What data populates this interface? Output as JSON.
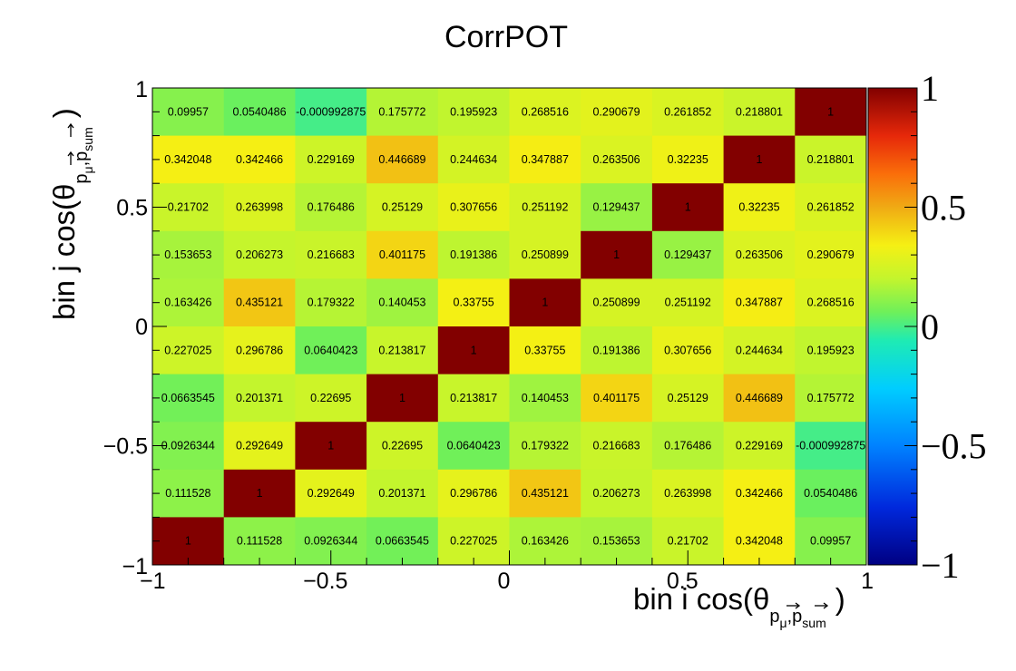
{
  "chart_data": {
    "type": "heatmap",
    "title": "CorrPOT",
    "xlabel": {
      "main": "bin i cos(θ",
      "subscript": "p",
      "sub2": "μ",
      "sep": ",",
      "sub3": "p",
      "sub4": "sum",
      "close": ")"
    },
    "ylabel": {
      "main": "bin j cos(θ",
      "subscript": "p",
      "sub2": "μ",
      "sep": ",",
      "sub3": "p",
      "sub4": "sum",
      "close": ")"
    },
    "xlim": [
      -1,
      1
    ],
    "ylim": [
      -1,
      1
    ],
    "zlim": [
      -1,
      1
    ],
    "x_ticks": [
      "−1",
      "−0.5",
      "0",
      "0.5",
      "1"
    ],
    "y_ticks": [
      "−1",
      "−0.5",
      "0",
      "0.5",
      "1"
    ],
    "colorbar_ticks": [
      "−1",
      "−0.5",
      "0",
      "0.5",
      "1"
    ],
    "colorbar_tick_values": [
      -1,
      -0.5,
      0,
      0.5,
      1
    ],
    "tick_values": [
      -1,
      -0.5,
      0,
      0.5,
      1
    ],
    "n_bins": 10,
    "rows_top_to_bottom": [
      [
        "0.09957",
        "0.0540486",
        "-0.000992875",
        "0.175772",
        "0.195923",
        "0.268516",
        "0.290679",
        "0.261852",
        "0.218801",
        "1"
      ],
      [
        "0.342048",
        "0.342466",
        "0.229169",
        "0.446689",
        "0.244634",
        "0.347887",
        "0.263506",
        "0.32235",
        "1",
        "0.218801"
      ],
      [
        "0.21702",
        "0.263998",
        "0.176486",
        "0.25129",
        "0.307656",
        "0.251192",
        "0.129437",
        "1",
        "0.32235",
        "0.261852"
      ],
      [
        "0.153653",
        "0.206273",
        "0.216683",
        "0.401175",
        "0.191386",
        "0.250899",
        "1",
        "0.129437",
        "0.263506",
        "0.290679"
      ],
      [
        "0.163426",
        "0.435121",
        "0.179322",
        "0.140453",
        "0.33755",
        "1",
        "0.250899",
        "0.251192",
        "0.347887",
        "0.268516"
      ],
      [
        "0.227025",
        "0.296786",
        "0.0640423",
        "0.213817",
        "1",
        "0.33755",
        "0.191386",
        "0.307656",
        "0.244634",
        "0.195923"
      ],
      [
        "0.0663545",
        "0.201371",
        "0.22695",
        "1",
        "0.213817",
        "0.140453",
        "0.401175",
        "0.25129",
        "0.446689",
        "0.175772"
      ],
      [
        "0.0926344",
        "0.292649",
        "1",
        "0.22695",
        "0.0640423",
        "0.179322",
        "0.216683",
        "0.176486",
        "0.229169",
        "-0.000992875"
      ],
      [
        "0.111528",
        "1",
        "0.292649",
        "0.201371",
        "0.296786",
        "0.435121",
        "0.206273",
        "0.263998",
        "0.342466",
        "0.0540486"
      ],
      [
        "1",
        "0.111528",
        "0.0926344",
        "0.0663545",
        "0.227025",
        "0.163426",
        "0.153653",
        "0.21702",
        "0.342048",
        "0.09957"
      ]
    ]
  }
}
